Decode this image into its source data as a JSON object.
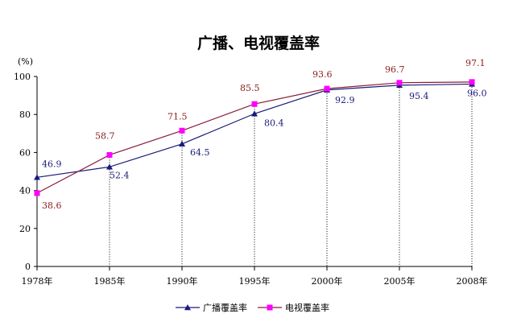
{
  "chart_data": {
    "type": "line",
    "title": "广播、电视覆盖率",
    "ylabel": "(%)",
    "xlabel": "",
    "categories": [
      "1978年",
      "1985年",
      "1990年",
      "1995年",
      "2000年",
      "2005年",
      "2008年"
    ],
    "ylim": [
      0,
      100
    ],
    "yticks": [
      0,
      20,
      40,
      60,
      80,
      100
    ],
    "grid": false,
    "drop_lines": "dotted",
    "legend": "bottom",
    "series": [
      {
        "name": "广播覆盖率",
        "marker": "triangle",
        "color": "#1a1a7a",
        "label_color": "#1a1a7a",
        "values": [
          46.9,
          52.4,
          64.5,
          80.4,
          92.9,
          95.4,
          96.0
        ],
        "value_labels": [
          "46.9",
          "52.4",
          "64.5",
          "80.4",
          "92.9",
          "95.4",
          "96.0"
        ]
      },
      {
        "name": "电视覆盖率",
        "marker": "square",
        "color": "#8b1a3a",
        "marker_color": "#ff00ff",
        "label_color": "#8b1a1a",
        "values": [
          38.6,
          58.7,
          71.5,
          85.5,
          93.6,
          96.7,
          97.1
        ],
        "value_labels": [
          "38.6",
          "58.7",
          "71.5",
          "85.5",
          "93.6",
          "96.7",
          "97.1"
        ]
      }
    ]
  }
}
